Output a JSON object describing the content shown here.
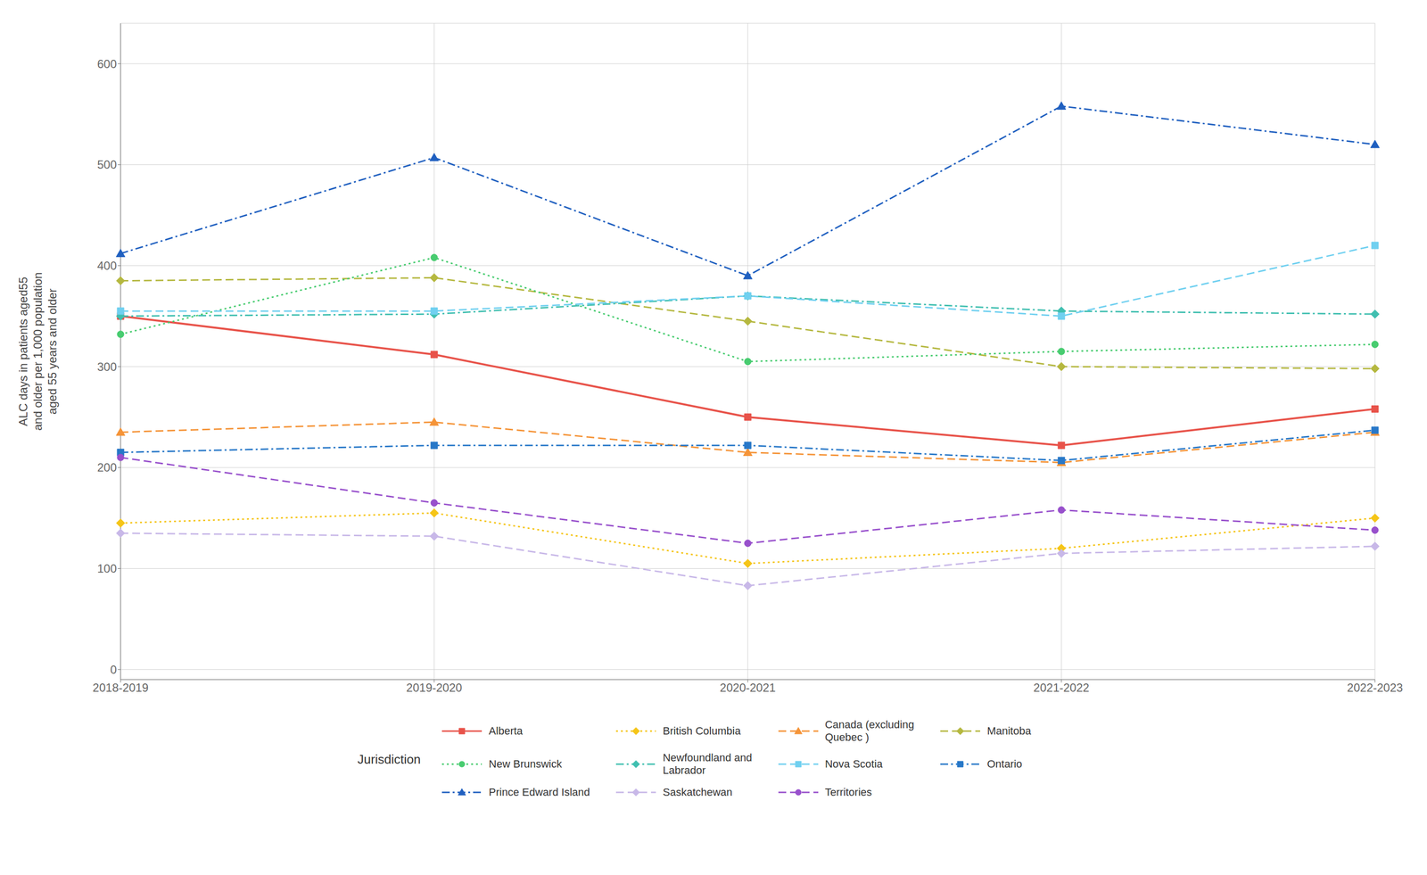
{
  "chart_data": {
    "type": "line",
    "ylabel": "ALC days in patients aged55\nand older per 1,000 population\naged 55 years and older",
    "legend_title": "Jurisdiction",
    "categories": [
      "2018-2019",
      "2019-2020",
      "2020-2021",
      "2021-2022",
      "2022-2023"
    ],
    "series": [
      {
        "name": "Alberta",
        "color": "#E8534A",
        "marker": "square",
        "line_style": "solid",
        "values": [
          350,
          312,
          250,
          222,
          258
        ]
      },
      {
        "name": "British Columbia",
        "color": "#F5C518",
        "marker": "diamond",
        "line_style": "dotted",
        "values": [
          145,
          155,
          105,
          120,
          150
        ]
      },
      {
        "name": "Canada (excluding\nQuebec )",
        "color": "#F59438",
        "marker": "triangle",
        "line_style": "dashed",
        "values": [
          235,
          245,
          215,
          205,
          235
        ]
      },
      {
        "name": "Manitoba",
        "color": "#B5B840",
        "marker": "diamond",
        "line_style": "dashed",
        "values": [
          385,
          388,
          345,
          300,
          298
        ]
      },
      {
        "name": "New Brunswick",
        "color": "#48CC70",
        "marker": "circle",
        "line_style": "dotted",
        "values": [
          332,
          408,
          305,
          315,
          322
        ]
      },
      {
        "name": "Newfoundland and\nLabrador",
        "color": "#40BFB0",
        "marker": "diamond",
        "line_style": "dashdot",
        "values": [
          350,
          352,
          370,
          355,
          352
        ]
      },
      {
        "name": "Nova Scotia",
        "color": "#70D0F0",
        "marker": "square",
        "line_style": "dashed",
        "values": [
          355,
          355,
          370,
          350,
          420
        ]
      },
      {
        "name": "Ontario",
        "color": "#2878C8",
        "marker": "square",
        "line_style": "dashdot",
        "values": [
          215,
          222,
          222,
          207,
          237
        ]
      },
      {
        "name": "Prince Edward Island",
        "color": "#2060C0",
        "marker": "triangle",
        "line_style": "dashdot",
        "values": [
          412,
          507,
          390,
          558,
          520
        ]
      },
      {
        "name": "Saskatchewan",
        "color": "#C8B8E8",
        "marker": "diamond",
        "line_style": "dashed",
        "values": [
          135,
          132,
          83,
          115,
          122
        ]
      },
      {
        "name": "Territories",
        "color": "#9850CC",
        "marker": "circle",
        "line_style": "dashed",
        "values": [
          210,
          165,
          125,
          158,
          138
        ]
      }
    ],
    "ylim": [
      -10,
      640
    ],
    "yticks": [
      0,
      100,
      200,
      300,
      400,
      500,
      600
    ],
    "grid": true,
    "legend": "bottom"
  }
}
